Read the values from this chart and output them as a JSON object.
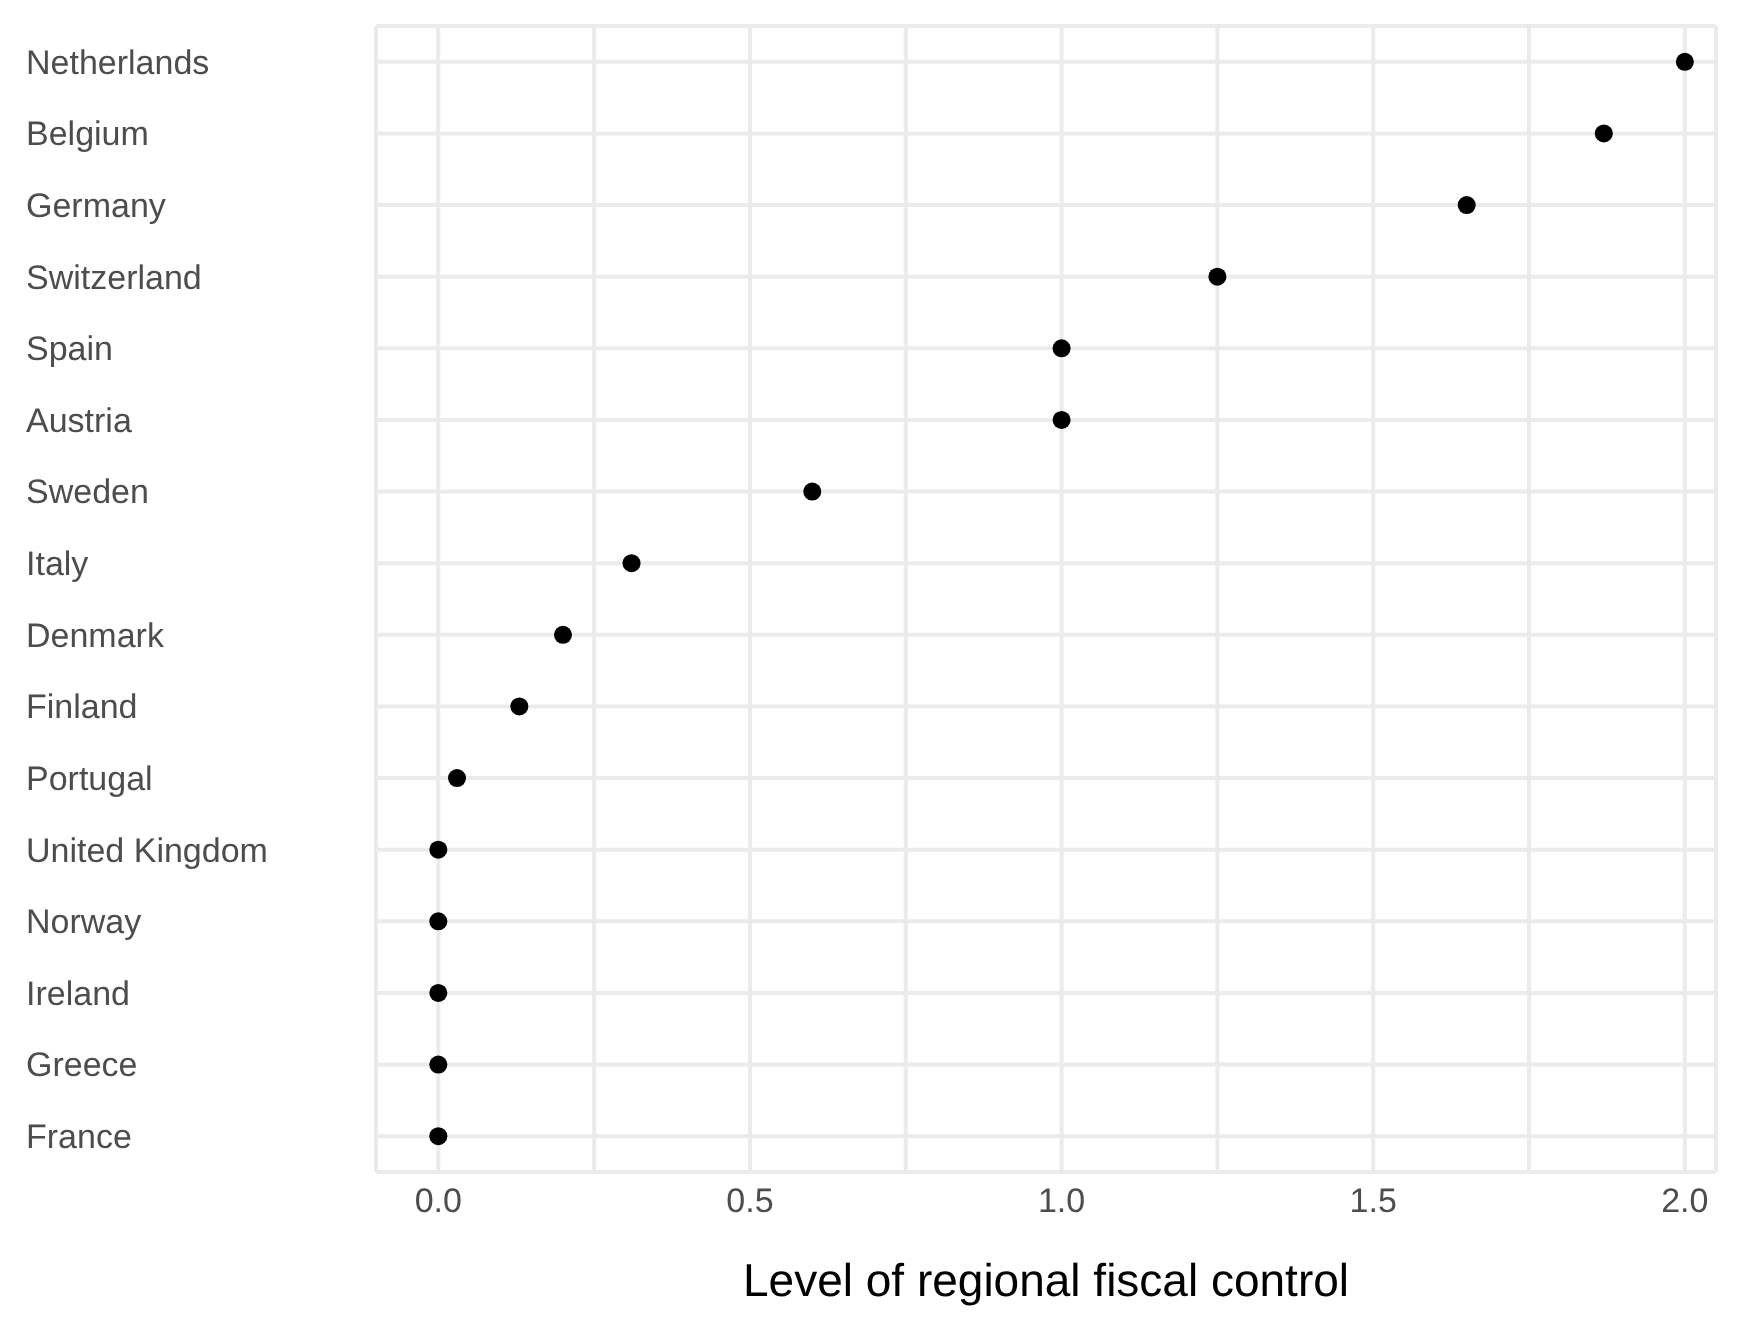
{
  "chart_data": {
    "type": "scatter",
    "orientation": "horizontal",
    "xlabel": "Level of regional fiscal control",
    "categories": [
      "Netherlands",
      "Belgium",
      "Germany",
      "Switzerland",
      "Spain",
      "Austria",
      "Sweden",
      "Italy",
      "Denmark",
      "Finland",
      "Portugal",
      "United Kingdom",
      "Norway",
      "Ireland",
      "Greece",
      "France"
    ],
    "values": [
      2.0,
      1.87,
      1.65,
      1.25,
      1.0,
      1.0,
      0.6,
      0.31,
      0.2,
      0.13,
      0.03,
      0,
      0,
      0,
      0,
      0
    ],
    "color": "#000000",
    "marker": "circle",
    "grid": true,
    "xlim": [
      -0.1,
      2.05
    ],
    "xticks": [
      {
        "value": 0,
        "label": "0.0"
      },
      {
        "value": 0.25,
        "label": null
      },
      {
        "value": 0.5,
        "label": "0.5"
      },
      {
        "value": 0.75,
        "label": null
      },
      {
        "value": 1,
        "label": "1.0"
      },
      {
        "value": 1.25,
        "label": null
      },
      {
        "value": 1.5,
        "label": "1.5"
      },
      {
        "value": 1.75,
        "label": null
      },
      {
        "value": 2,
        "label": "2.0"
      }
    ]
  }
}
